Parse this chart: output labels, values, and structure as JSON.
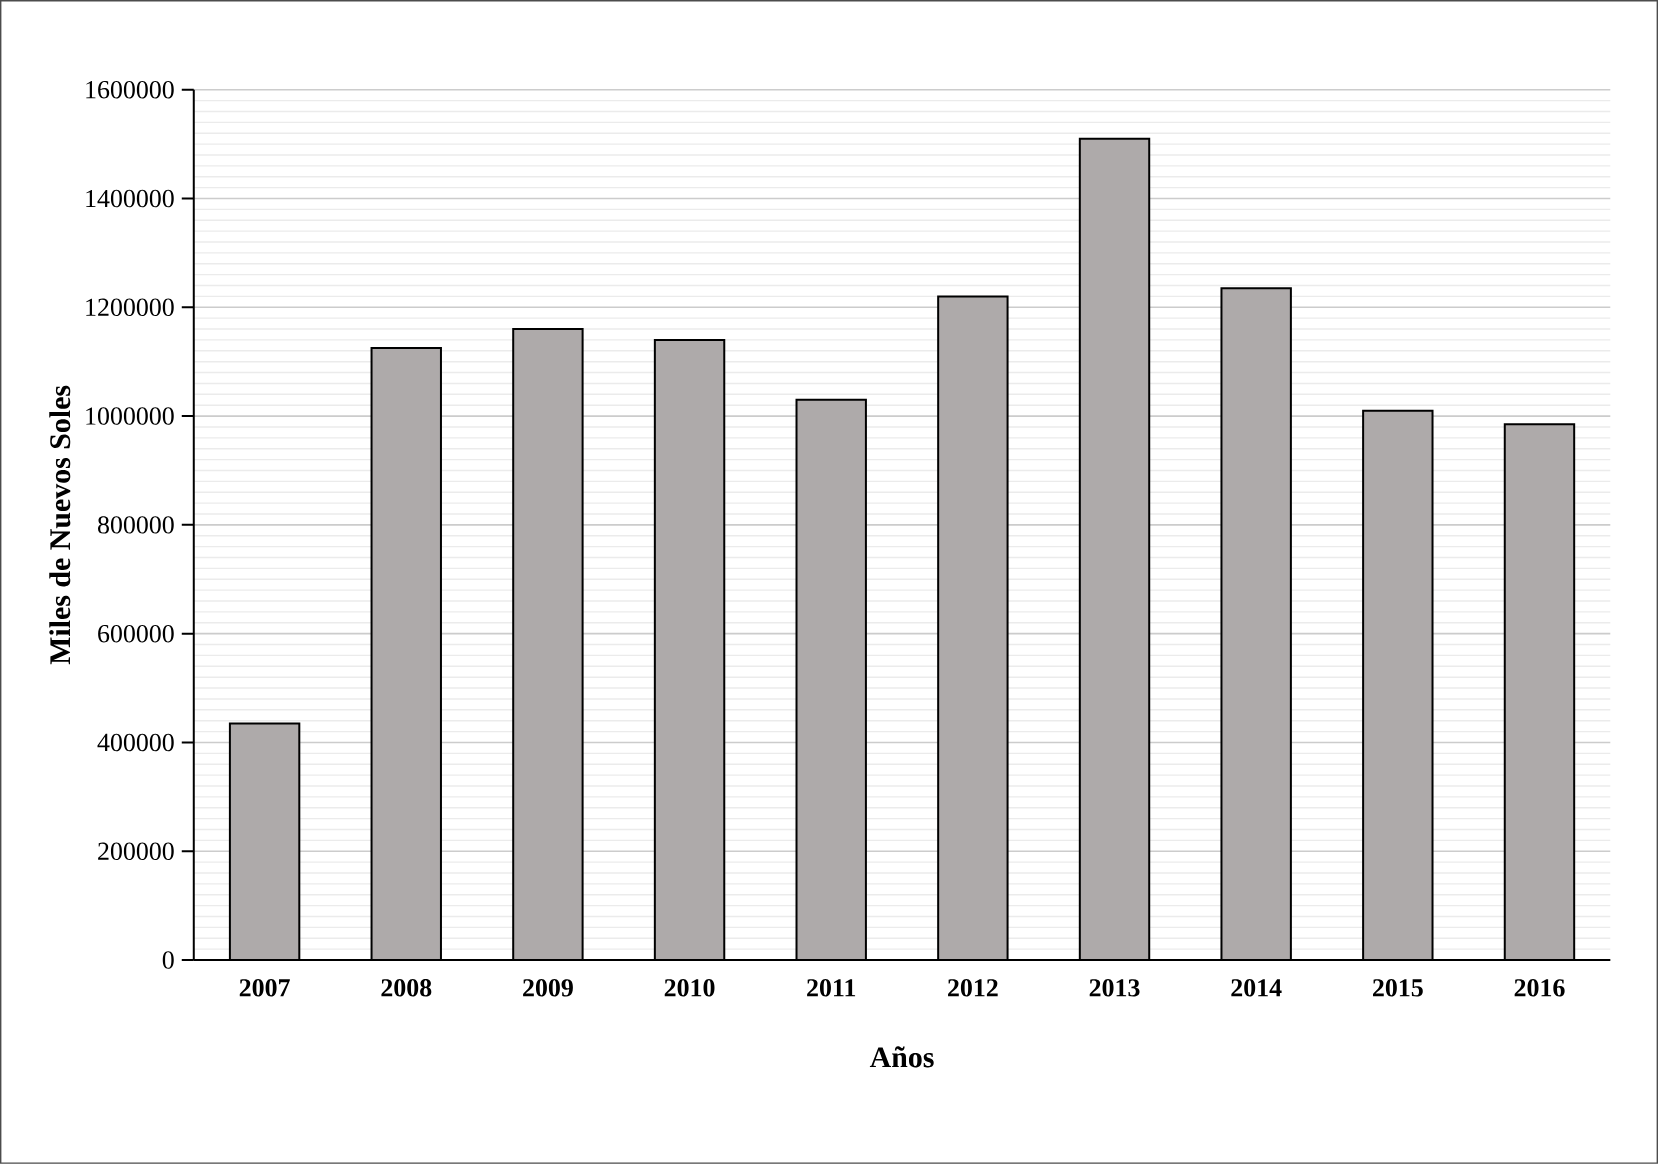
{
  "chart_data": {
    "type": "bar",
    "xlabel": "Años",
    "ylabel": "Miles de Nuevos Soles",
    "categories": [
      "2007",
      "2008",
      "2009",
      "2010",
      "2011",
      "2012",
      "2013",
      "2014",
      "2015",
      "2016"
    ],
    "values": [
      435000,
      1125000,
      1160000,
      1140000,
      1030000,
      1220000,
      1510000,
      1235000,
      1010000,
      985000
    ],
    "color": "#aeaaaa",
    "ylim": [
      0,
      1600000
    ],
    "yticks": [
      0,
      200000,
      400000,
      600000,
      800000,
      1000000,
      1200000,
      1400000,
      1600000
    ],
    "grid": "y"
  }
}
